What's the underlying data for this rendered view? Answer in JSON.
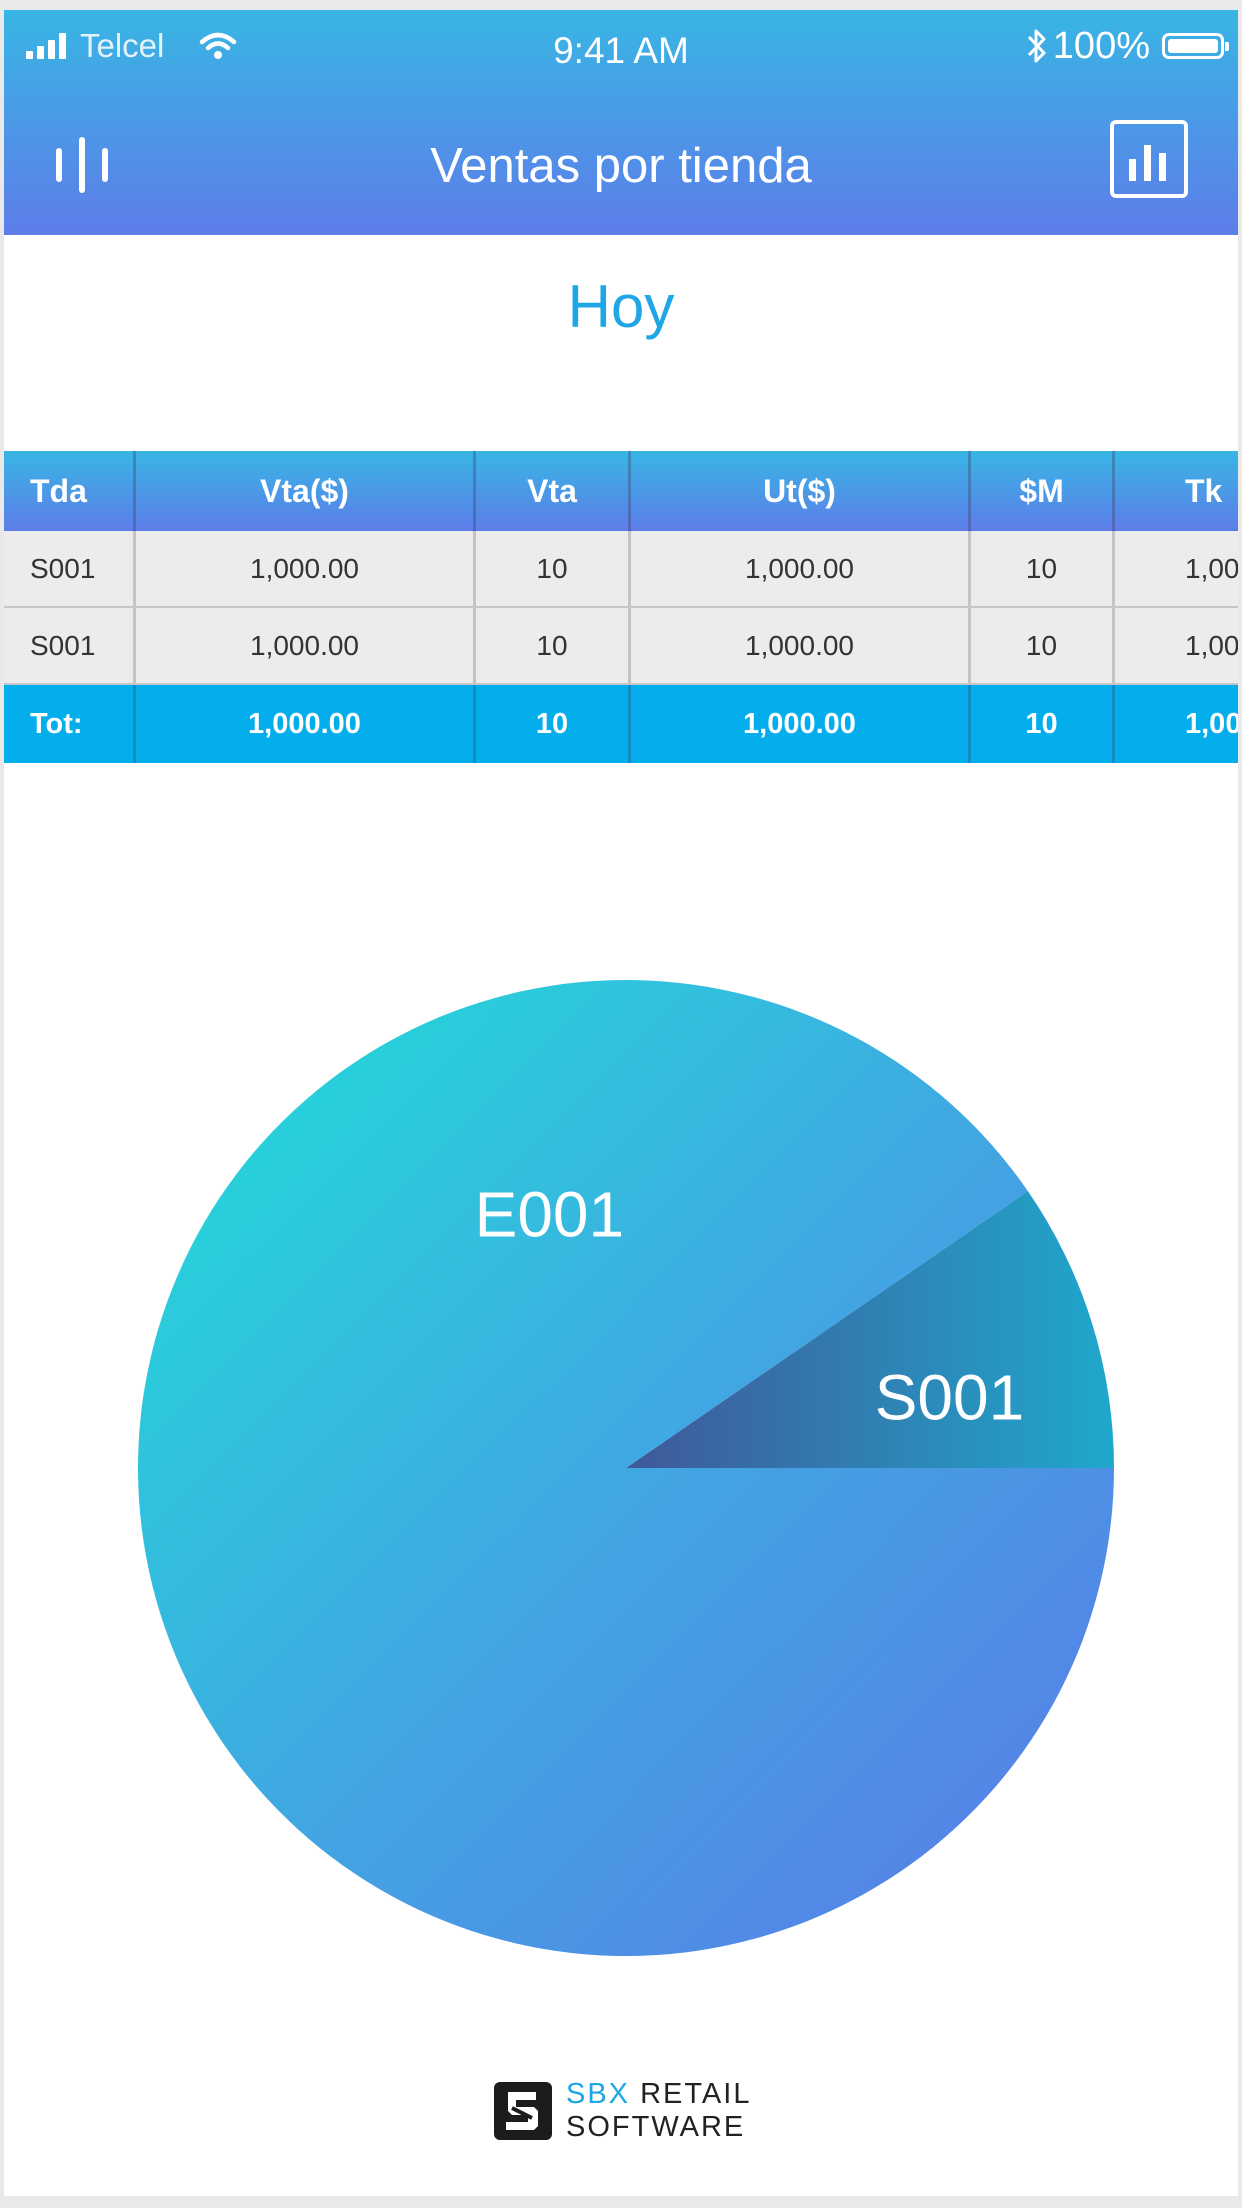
{
  "status_bar": {
    "carrier": "Telcel",
    "time": "9:41 AM",
    "battery": "100%"
  },
  "nav": {
    "title": "Ventas por tienda",
    "menu_icon": "equalizer-menu-icon",
    "chart_icon": "bar-chart-icon"
  },
  "period": "Hoy",
  "table": {
    "columns": [
      "Tda",
      "Vta($)",
      "Vta",
      "Ut($)",
      "$M",
      "Tk"
    ],
    "rows": [
      [
        "S001",
        "1,000.00",
        "10",
        "1,000.00",
        "10",
        "1,00"
      ],
      [
        "S001",
        "1,000.00",
        "10",
        "1,000.00",
        "10",
        "1,00"
      ]
    ],
    "total": [
      "Tot:",
      "1,000.00",
      "10",
      "1,000.00",
      "10",
      "1,00"
    ]
  },
  "chart_data": {
    "type": "pie",
    "title": "",
    "slices": [
      {
        "label": "E001",
        "value": 90.4
      },
      {
        "label": "S001",
        "value": 9.6
      }
    ]
  },
  "footer": {
    "brand_highlight": "SBX",
    "brand_rest": " RETAIL",
    "brand_line2": "SOFTWARE"
  },
  "colors": {
    "accent": "#1ea6e6",
    "header_top": "#38b6e4",
    "header_bottom": "#5d7de9",
    "total_row": "#04aeec",
    "pie_small_dark": "#40589a",
    "pie_small_light": "#1fa8cc"
  }
}
